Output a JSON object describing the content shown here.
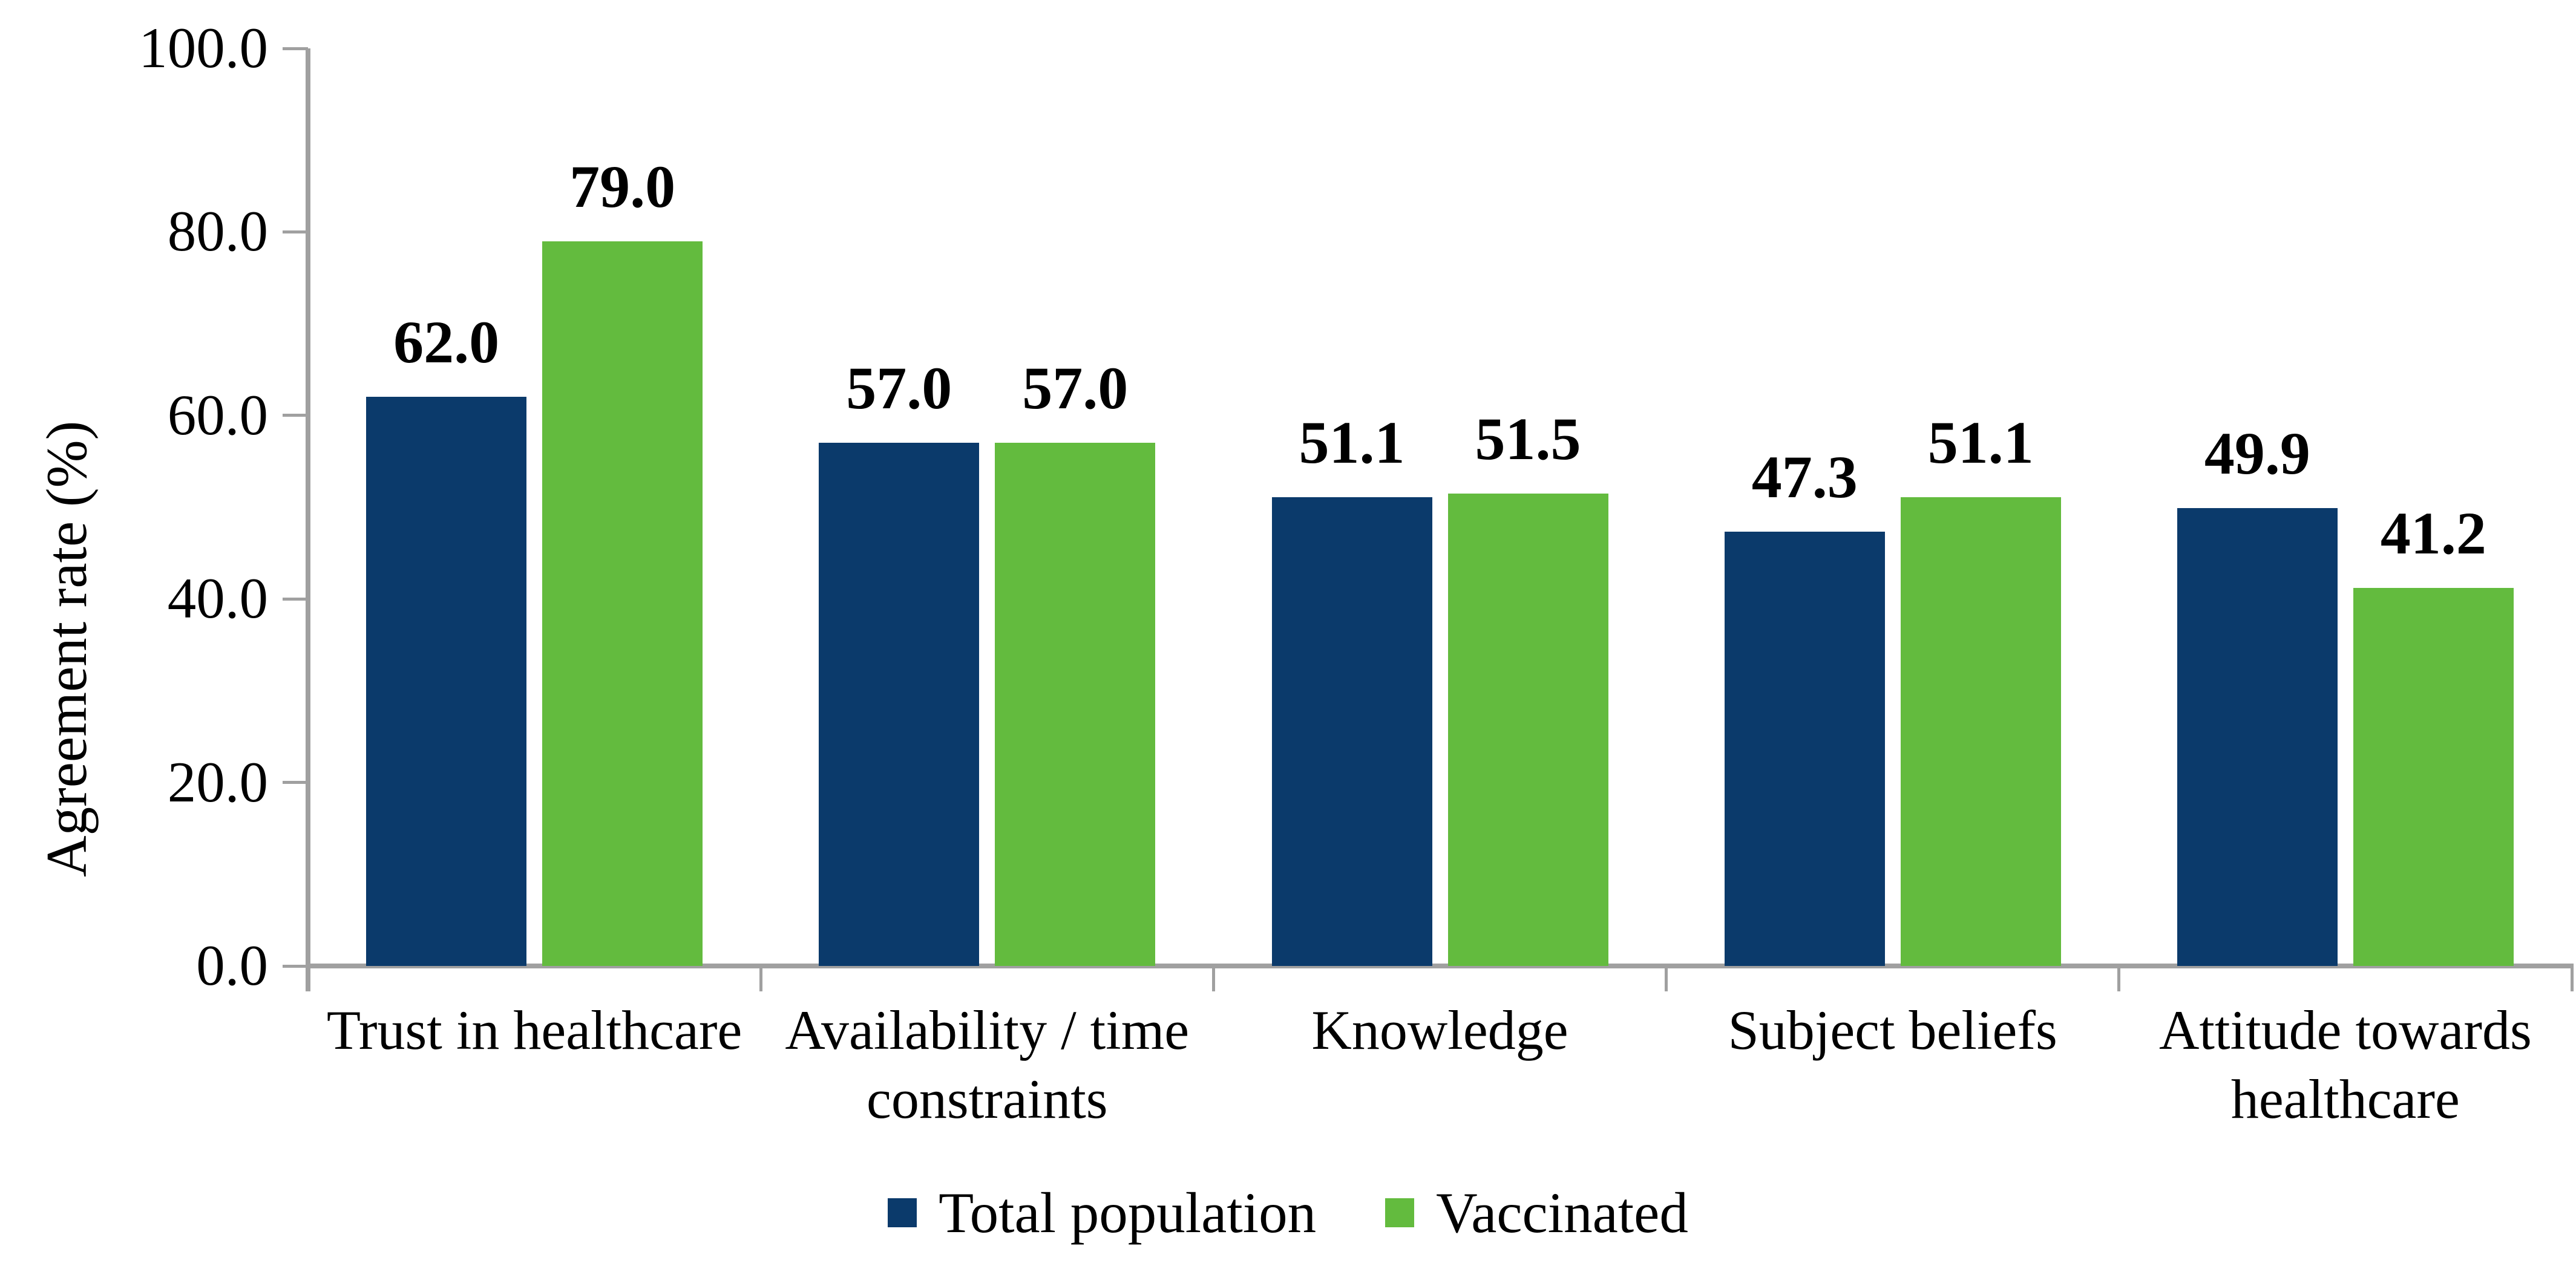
{
  "chart_data": {
    "type": "bar",
    "title": "",
    "ylabel": "Agreement rate (%)",
    "xlabel": "",
    "categories": [
      "Trust in healthcare",
      "Availability / time constraints",
      "Knowledge",
      "Subject beliefs",
      "Attitude towards healthcare"
    ],
    "category_lines": [
      [
        "Trust in healthcare"
      ],
      [
        "Availability / time",
        "constraints"
      ],
      [
        "Knowledge"
      ],
      [
        "Subject beliefs"
      ],
      [
        "Attitude towards",
        "healthcare"
      ]
    ],
    "series": [
      {
        "name": "Total population",
        "color": "#0B3A6B",
        "values": [
          62.0,
          57.0,
          51.1,
          47.3,
          49.9
        ]
      },
      {
        "name": "Vaccinated",
        "color": "#63BB3E",
        "values": [
          79.0,
          57.0,
          51.5,
          51.1,
          41.2
        ]
      }
    ],
    "y_ticks": [
      "100.0",
      "80.0",
      "60.0",
      "40.0",
      "20.0",
      "0.0"
    ],
    "ylim": [
      0,
      100
    ],
    "grid": false,
    "value_labels_shown": true,
    "legend_position": "bottom",
    "axis_color": "#A0A0A0",
    "text_color": "#000000"
  }
}
